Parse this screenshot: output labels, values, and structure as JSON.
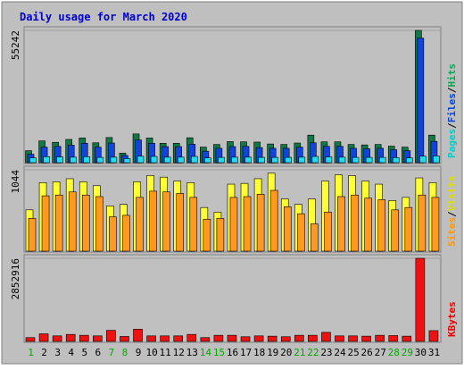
{
  "chart_data": {
    "type": "bar",
    "title": "Daily usage for March 2020",
    "days": [
      {
        "label": "1",
        "weekend": true
      },
      {
        "label": "2",
        "weekend": false
      },
      {
        "label": "3",
        "weekend": false
      },
      {
        "label": "4",
        "weekend": false
      },
      {
        "label": "5",
        "weekend": false
      },
      {
        "label": "6",
        "weekend": false
      },
      {
        "label": "7",
        "weekend": true
      },
      {
        "label": "8",
        "weekend": true
      },
      {
        "label": "9",
        "weekend": false
      },
      {
        "label": "10",
        "weekend": false
      },
      {
        "label": "11",
        "weekend": false
      },
      {
        "label": "12",
        "weekend": false
      },
      {
        "label": "13",
        "weekend": false
      },
      {
        "label": "14",
        "weekend": true
      },
      {
        "label": "15",
        "weekend": true
      },
      {
        "label": "16",
        "weekend": false
      },
      {
        "label": "17",
        "weekend": false
      },
      {
        "label": "18",
        "weekend": false
      },
      {
        "label": "19",
        "weekend": false
      },
      {
        "label": "20",
        "weekend": false
      },
      {
        "label": "21",
        "weekend": true
      },
      {
        "label": "22",
        "weekend": true
      },
      {
        "label": "23",
        "weekend": false
      },
      {
        "label": "24",
        "weekend": false
      },
      {
        "label": "25",
        "weekend": false
      },
      {
        "label": "26",
        "weekend": false
      },
      {
        "label": "27",
        "weekend": false
      },
      {
        "label": "28",
        "weekend": true
      },
      {
        "label": "29",
        "weekend": true
      },
      {
        "label": "30",
        "weekend": false
      },
      {
        "label": "31",
        "weekend": false
      }
    ],
    "panels": [
      {
        "key": "hits",
        "max_label": "55242",
        "ymax": 55242,
        "legend": [
          {
            "text": "Pages",
            "color": "#00cccc"
          },
          {
            "text": "Files",
            "color": "#0044dd"
          },
          {
            "text": "Hits",
            "color": "#00aa55"
          }
        ],
        "series": [
          {
            "name": "Hits",
            "color": "#117744",
            "values": [
              5000,
              9100,
              8500,
              9700,
              10300,
              8300,
              10500,
              4000,
              12000,
              10300,
              8100,
              8100,
              10400,
              6500,
              7600,
              8800,
              8700,
              8600,
              7800,
              7600,
              8200,
              11500,
              8700,
              8700,
              7600,
              7400,
              7600,
              6900,
              6500,
              55242,
              11500
            ]
          },
          {
            "name": "Files",
            "color": "#1144dd",
            "values": [
              3500,
              6500,
              6800,
              7300,
              8100,
              6500,
              8200,
              3000,
              9500,
              8100,
              6700,
              6700,
              7700,
              4800,
              6000,
              6700,
              6800,
              6300,
              6000,
              6000,
              6500,
              8300,
              6800,
              6800,
              6000,
              5800,
              6000,
              5400,
              5000,
              52000,
              8900
            ]
          },
          {
            "name": "Pages",
            "color": "#22ddee",
            "values": [
              2000,
              2500,
              2400,
              2300,
              2500,
              2200,
              2300,
              1700,
              2700,
              2600,
              2300,
              2300,
              2600,
              2000,
              2200,
              2300,
              2300,
              2200,
              2200,
              2200,
              2300,
              2600,
              2400,
              2300,
              2200,
              2200,
              2200,
              2100,
              2000,
              2700,
              2800
            ]
          }
        ]
      },
      {
        "key": "visits",
        "max_label": "1044",
        "ymax": 1044,
        "legend": [
          {
            "text": "Sites",
            "color": "#ff9900"
          },
          {
            "text": "Visits",
            "color": "#dddd00"
          }
        ],
        "series": [
          {
            "name": "Visits",
            "color": "#ffff33",
            "values": [
              530,
              880,
              890,
              930,
              890,
              840,
              580,
              600,
              890,
              970,
              950,
              900,
              880,
              560,
              500,
              860,
              870,
              930,
              1000,
              670,
              600,
              670,
              900,
              980,
              970,
              900,
              860,
              650,
              690,
              940,
              880
            ]
          },
          {
            "name": "Sites",
            "color": "#ff9922",
            "values": [
              420,
              710,
              720,
              760,
              720,
              700,
              440,
              460,
              690,
              770,
              760,
              740,
              690,
              410,
              420,
              690,
              700,
              730,
              780,
              570,
              480,
              350,
              500,
              700,
              720,
              680,
              660,
              530,
              560,
              720,
              690
            ]
          }
        ]
      },
      {
        "key": "kbytes",
        "max_label": "2852916",
        "ymax": 2852916,
        "legend": [
          {
            "text": "KBytes",
            "color": "#ee0000"
          }
        ],
        "series": [
          {
            "name": "KBytes",
            "color": "#ee1111",
            "values": [
              130000,
              260000,
              190000,
              240000,
              210000,
              190000,
              380000,
              170000,
              420000,
              190000,
              190000,
              190000,
              240000,
              130000,
              210000,
              210000,
              160000,
              190000,
              180000,
              160000,
              210000,
              210000,
              310000,
              190000,
              190000,
              180000,
              210000,
              200000,
              180000,
              2852916,
              370000
            ]
          }
        ]
      }
    ]
  }
}
